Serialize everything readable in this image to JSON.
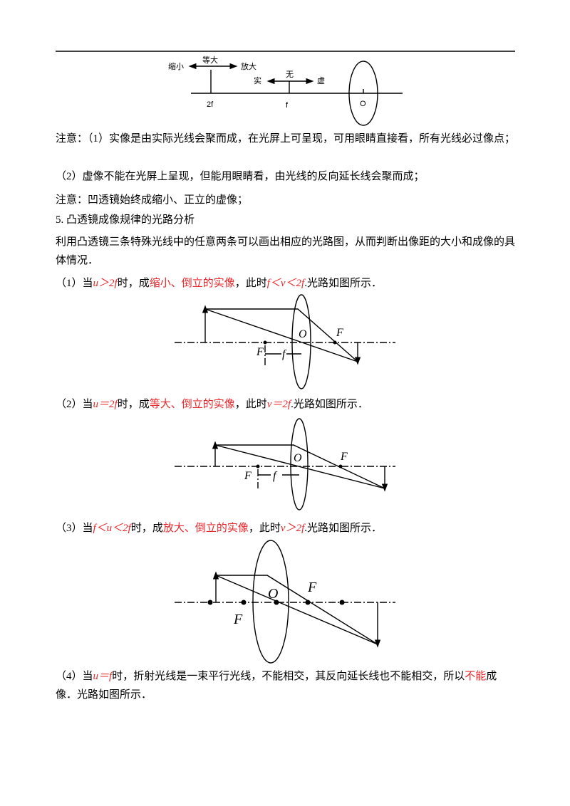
{
  "diagram_top": {
    "labels": [
      "缩小",
      "等大",
      "放大",
      "实",
      "无",
      "虚",
      "2f",
      "f",
      "O"
    ]
  },
  "paragraphs": [
    {
      "runs": [
        {
          "text": "注意：（1）实像是由实际光线会聚而成，在光屏上可呈现，可用眼睛直接看，所有光线必过像点；"
        }
      ]
    },
    {
      "runs": [
        {
          "text": "（2）虚像不能在光屏上呈现，但能用眼睛看，由光线的反向延长线会聚而成；"
        }
      ]
    },
    {
      "runs": [
        {
          "text": "注意：凹透镜始终成缩小、正立的虚像；"
        }
      ]
    },
    {
      "runs": [
        {
          "text": "5. 凸透镜成像规律的光路分析"
        }
      ]
    },
    {
      "runs": [
        {
          "text": "利用凸透镜三条特殊光线中的任意两条可以画出相应的光路图，从而判断出像距的大小和成像的具体情况．"
        }
      ]
    },
    {
      "runs": [
        {
          "text": "（1）当"
        },
        {
          "text": "u＞2f",
          "color": "red",
          "italic": true
        },
        {
          "text": "时，成"
        },
        {
          "text": "缩小、倒立的实像",
          "color": "red"
        },
        {
          "text": "，此时"
        },
        {
          "text": "f＜v＜2f",
          "color": "red",
          "italic": true
        },
        {
          "text": ".光路如图所示．"
        }
      ]
    },
    {
      "runs": [
        {
          "text": "（2）当"
        },
        {
          "text": "u＝2f",
          "color": "red",
          "italic": true
        },
        {
          "text": "时，成"
        },
        {
          "text": "等大、倒立的实像",
          "color": "red"
        },
        {
          "text": "，此时"
        },
        {
          "text": "v＝2f",
          "color": "red",
          "italic": true
        },
        {
          "text": ".光路如图所示．"
        }
      ]
    },
    {
      "runs": [
        {
          "text": "（3）当"
        },
        {
          "text": "f＜u＜2f",
          "color": "red",
          "italic": true
        },
        {
          "text": "时，成"
        },
        {
          "text": "放大、倒立的实像",
          "color": "red"
        },
        {
          "text": "，此时"
        },
        {
          "text": "v＞2f",
          "color": "red",
          "italic": true
        },
        {
          "text": ".光路如图所示．"
        }
      ]
    },
    {
      "runs": [
        {
          "text": "（4）当"
        },
        {
          "text": "u＝f",
          "color": "red",
          "italic": true
        },
        {
          "text": "时，折射光线是一束平行光线，不能相交，其反向延长线也不能相交，所以"
        },
        {
          "text": "不能",
          "color": "red"
        },
        {
          "text": "成像．光路如图所示．"
        }
      ]
    }
  ],
  "diagrams": [
    {
      "labels": [
        "O",
        "F",
        "F",
        "f"
      ]
    },
    {
      "labels": [
        "O",
        "F",
        "F",
        "f"
      ]
    },
    {
      "labels": [
        "O",
        "F",
        "F"
      ]
    }
  ]
}
